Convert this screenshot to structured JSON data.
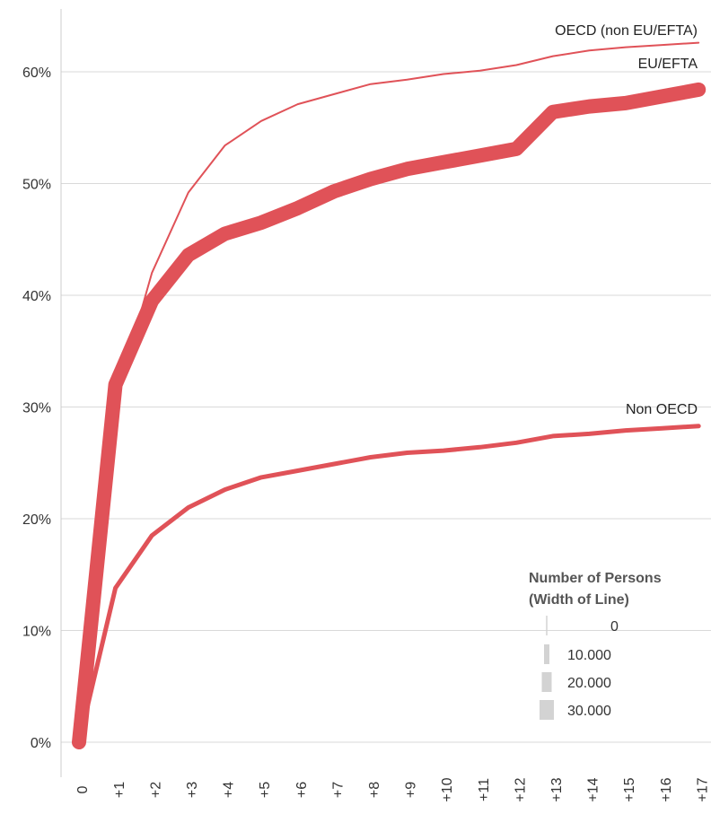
{
  "chart_data": {
    "type": "line",
    "x": [
      "0",
      "+1",
      "+2",
      "+3",
      "+4",
      "+5",
      "+6",
      "+7",
      "+8",
      "+9",
      "+10",
      "+11",
      "+12",
      "+13",
      "+14",
      "+15",
      "+16",
      "+17"
    ],
    "ylim": [
      0,
      0.65
    ],
    "yticks": [
      "0%",
      "10%",
      "20%",
      "30%",
      "40%",
      "50%",
      "60%"
    ],
    "grid": true,
    "line_color": "#e05258",
    "series": [
      {
        "name": "OECD (non EU/EFTA)",
        "values": [
          0.0,
          0.305,
          0.42,
          0.492,
          0.534,
          0.556,
          0.571,
          0.58,
          0.589,
          0.593,
          0.598,
          0.601,
          0.606,
          0.614,
          0.619,
          0.622,
          0.624,
          0.626
        ],
        "persons": 2000
      },
      {
        "name": "EU/EFTA",
        "values": [
          0.0,
          0.32,
          0.395,
          0.436,
          0.455,
          0.465,
          0.478,
          0.493,
          0.504,
          0.513,
          0.519,
          0.525,
          0.531,
          0.564,
          0.569,
          0.572,
          0.578,
          0.584
        ],
        "persons": 30000
      },
      {
        "name": "Non OECD",
        "values": [
          0.0,
          0.138,
          0.185,
          0.21,
          0.226,
          0.237,
          0.243,
          0.249,
          0.255,
          0.259,
          0.261,
          0.264,
          0.268,
          0.274,
          0.276,
          0.279,
          0.281,
          0.283
        ],
        "persons": 8000
      }
    ],
    "legend": {
      "title_line1": "Number of Persons",
      "title_line2": "(Width of Line)",
      "placement": "bottom-right",
      "items": [
        {
          "label": "0",
          "persons": 0
        },
        {
          "label": "10.000",
          "persons": 10000
        },
        {
          "label": "20.000",
          "persons": 20000
        },
        {
          "label": "30.000",
          "persons": 30000
        }
      ],
      "swatch_color": "#d3d3d3"
    }
  }
}
